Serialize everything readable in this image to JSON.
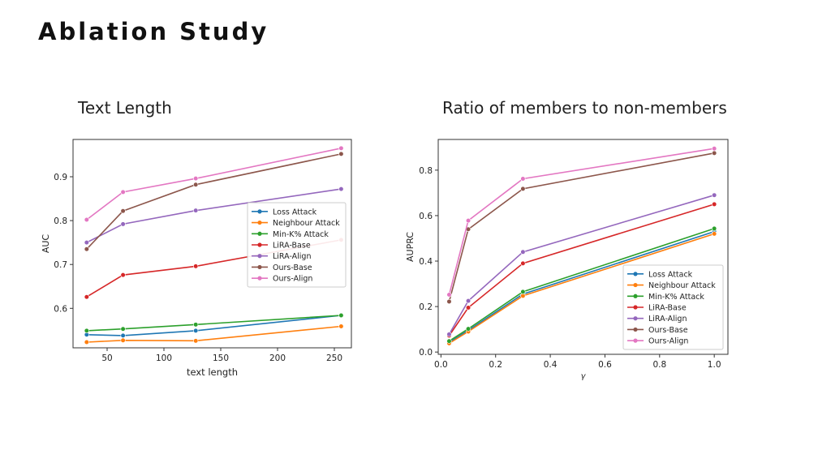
{
  "page": {
    "title": "Ablation Study"
  },
  "panels": [
    {
      "subtitle": "Text Length"
    },
    {
      "subtitle": "Ratio of members to non-members"
    }
  ],
  "colors": {
    "Loss Attack": "#1f77b4",
    "Neighbour Attack": "#ff7f0e",
    "Min-K% Attack": "#2ca02c",
    "LiRA-Base": "#d62728",
    "LiRA-Align": "#9467bd",
    "Ours-Base": "#8c564b",
    "Ours-Align": "#e377c2"
  },
  "chart_data": [
    {
      "type": "line",
      "title": "",
      "xlabel": "text length",
      "ylabel": "AUC",
      "x": [
        32,
        64,
        128,
        256
      ],
      "xlim": [
        20,
        265
      ],
      "ylim": [
        0.51,
        0.985
      ],
      "xticks": [
        50,
        100,
        150,
        200,
        250
      ],
      "yticks": [
        0.6,
        0.7,
        0.8,
        0.9
      ],
      "ytick_labels": [
        "0.6",
        "0.7",
        "0.8",
        "0.9"
      ],
      "legend": "center-right",
      "series": [
        {
          "name": "Loss Attack",
          "values": [
            0.54,
            0.538,
            0.549,
            0.584
          ]
        },
        {
          "name": "Neighbour Attack",
          "values": [
            0.523,
            0.527,
            0.526,
            0.559
          ]
        },
        {
          "name": "Min-K% Attack",
          "values": [
            0.549,
            0.553,
            0.563,
            0.584
          ]
        },
        {
          "name": "LiRA-Base",
          "values": [
            0.626,
            0.676,
            0.696,
            0.756
          ]
        },
        {
          "name": "LiRA-Align",
          "values": [
            0.75,
            0.792,
            0.823,
            0.872
          ]
        },
        {
          "name": "Ours-Base",
          "values": [
            0.735,
            0.822,
            0.882,
            0.952
          ]
        },
        {
          "name": "Ours-Align",
          "values": [
            0.802,
            0.865,
            0.896,
            0.965
          ]
        }
      ]
    },
    {
      "type": "line",
      "title": "",
      "xlabel": "γ",
      "ylabel": "AUPRC",
      "x": [
        0.03,
        0.1,
        0.3,
        1.0
      ],
      "xlim": [
        -0.01,
        1.05
      ],
      "ylim": [
        -0.01,
        0.935
      ],
      "xticks": [
        0.0,
        0.2,
        0.4,
        0.6,
        0.8,
        1.0
      ],
      "xtick_labels": [
        "0.0",
        "0.2",
        "0.4",
        "0.6",
        "0.8",
        "1.0"
      ],
      "yticks": [
        0.0,
        0.2,
        0.4,
        0.6,
        0.8
      ],
      "ytick_labels": [
        "0.0",
        "0.2",
        "0.4",
        "0.6",
        "0.8"
      ],
      "legend": "lower-right",
      "series": [
        {
          "name": "Loss Attack",
          "values": [
            0.042,
            0.095,
            0.255,
            0.53
          ]
        },
        {
          "name": "Neighbour Attack",
          "values": [
            0.038,
            0.09,
            0.247,
            0.52
          ]
        },
        {
          "name": "Min-K% Attack",
          "values": [
            0.048,
            0.102,
            0.265,
            0.543
          ]
        },
        {
          "name": "LiRA-Base",
          "values": [
            0.072,
            0.195,
            0.39,
            0.65
          ]
        },
        {
          "name": "LiRA-Align",
          "values": [
            0.078,
            0.225,
            0.44,
            0.69
          ]
        },
        {
          "name": "Ours-Base",
          "values": [
            0.222,
            0.54,
            0.718,
            0.875
          ]
        },
        {
          "name": "Ours-Align",
          "values": [
            0.252,
            0.578,
            0.762,
            0.895
          ]
        }
      ]
    }
  ]
}
